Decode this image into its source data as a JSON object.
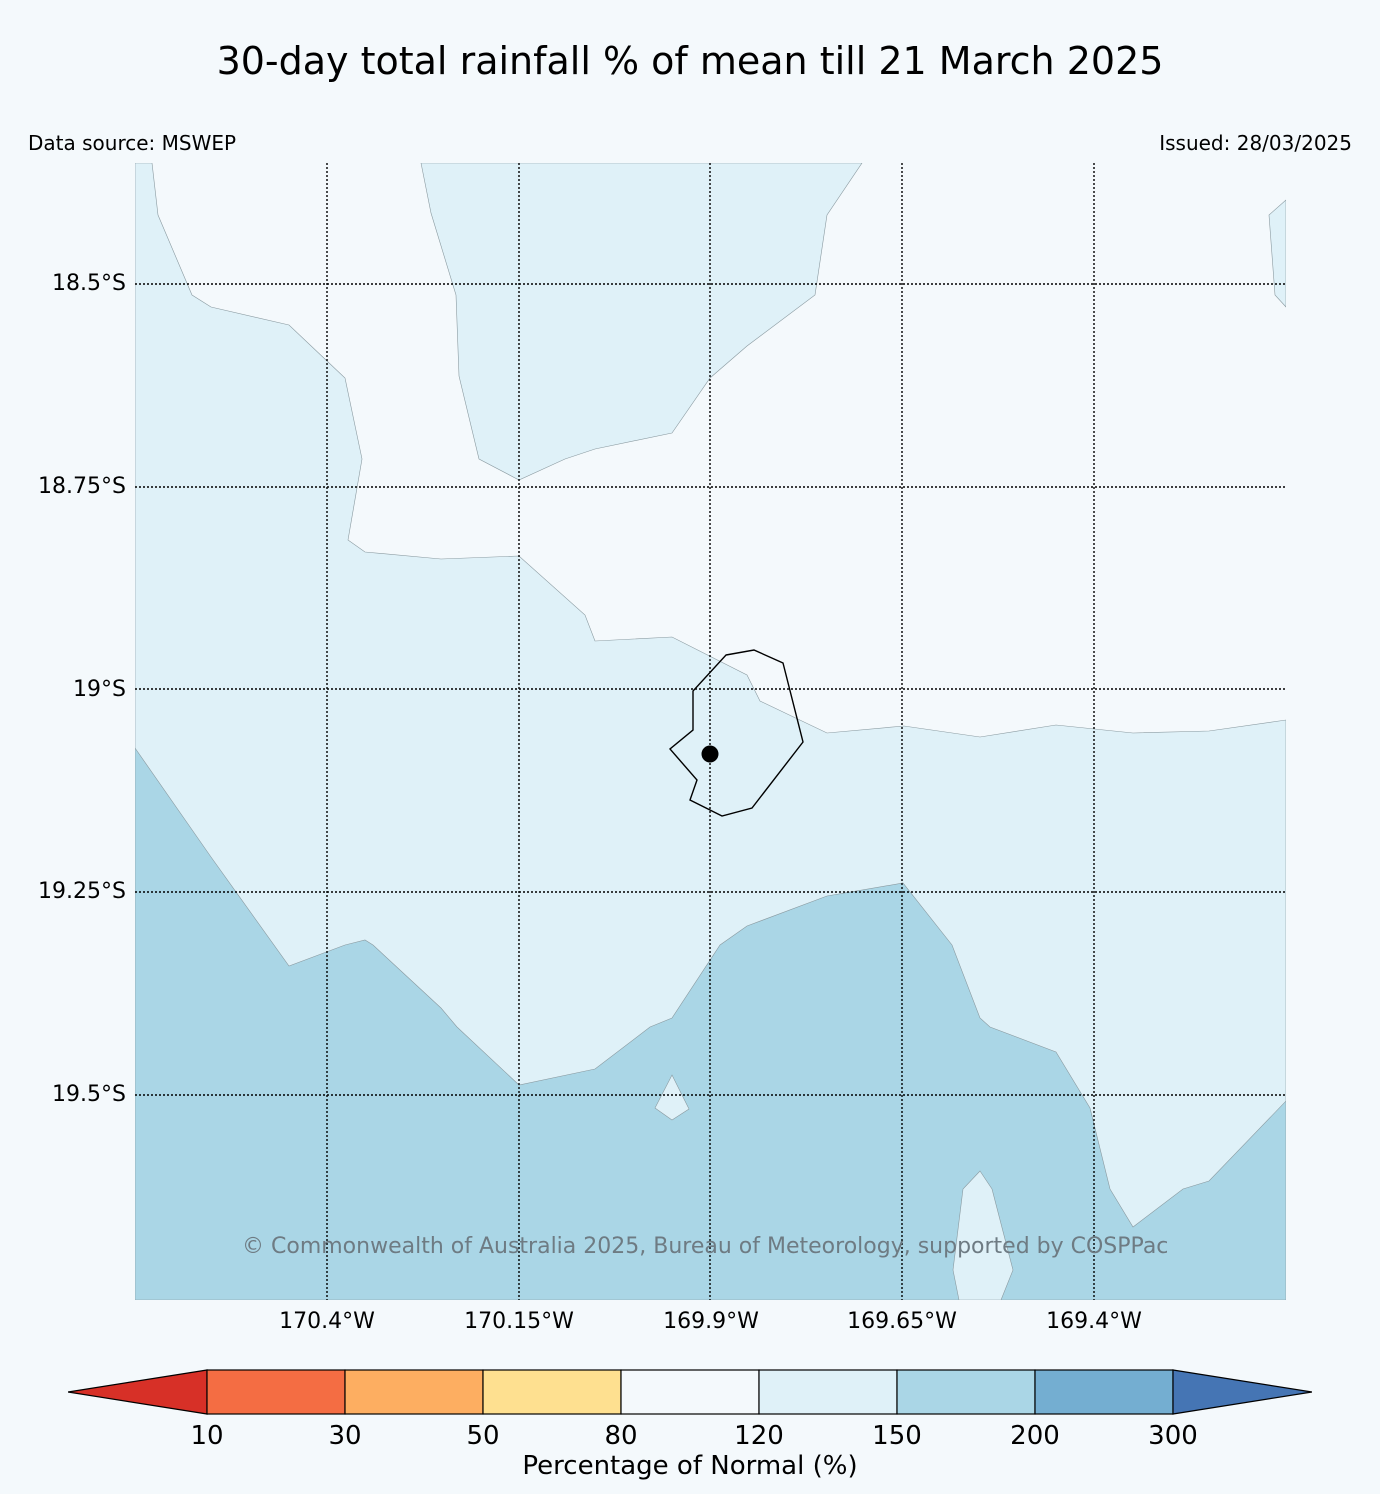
{
  "title": "30-day total rainfall % of mean till 21 March 2025",
  "data_source": "Data source: MSWEP",
  "issued": "Issued: 28/03/2025",
  "copyright": "© Commonwealth of Australia 2025, Bureau of Meteorology, supported by COSPPac",
  "map": {
    "background_color": "#f4f9fc",
    "latitude_labels": [
      "18.5°S",
      "18.75°S",
      "19°S",
      "19.25°S",
      "19.5°S"
    ],
    "longitude_labels": [
      "170.4°W",
      "170.15°W",
      "169.9°W",
      "169.65°W",
      "169.4°W"
    ],
    "gridlines": "dotted",
    "location_marker": "filled black circle",
    "island_outline": "black",
    "zones": [
      {
        "category": "120-150",
        "color": "#dff1f8"
      },
      {
        "category": "150-200",
        "color": "#aad6e6"
      }
    ]
  },
  "colorbar": {
    "label": "Percentage of Normal (%)",
    "ticks": [
      "10",
      "30",
      "50",
      "80",
      "120",
      "150",
      "200",
      "300"
    ],
    "colors": [
      "#d73027",
      "#f46d43",
      "#fdae61",
      "#fee090",
      "#f4f9fc",
      "#dff1f8",
      "#aad6e6",
      "#74aed1",
      "#4575b4"
    ],
    "extend": "both"
  }
}
